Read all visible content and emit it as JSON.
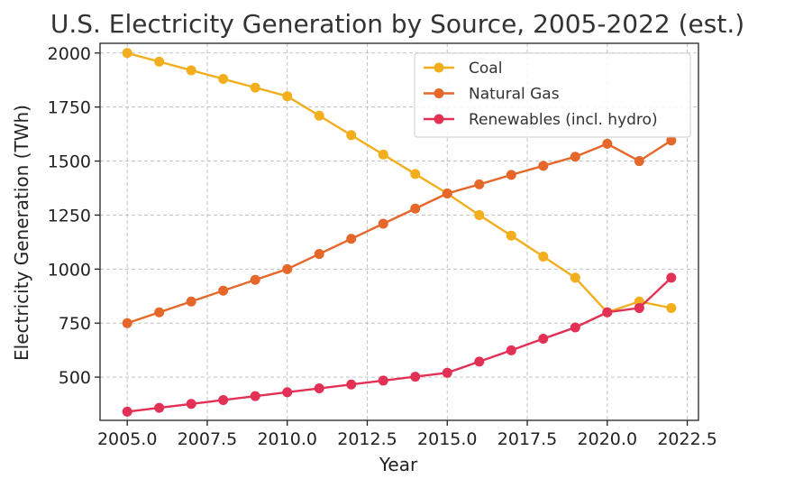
{
  "chart_data": {
    "type": "line",
    "title": "U.S. Electricity Generation by Source, 2005-2022 (est.)",
    "xlabel": "Year",
    "ylabel": "Electricity Generation (TWh)",
    "xlim": [
      2004.15,
      2022.85
    ],
    "ylim": [
      300,
      2045
    ],
    "x_ticks": [
      2005.0,
      2007.5,
      2010.0,
      2012.5,
      2015.0,
      2017.5,
      2020.0,
      2022.5
    ],
    "x_tick_labels": [
      "2005.0",
      "2007.5",
      "2010.0",
      "2012.5",
      "2015.0",
      "2017.5",
      "2020.0",
      "2022.5"
    ],
    "y_ticks": [
      500,
      750,
      1000,
      1250,
      1500,
      1750,
      2000
    ],
    "y_tick_labels": [
      "500",
      "750",
      "1000",
      "1250",
      "1500",
      "1750",
      "2000"
    ],
    "grid": true,
    "legend_position": "top-right",
    "x": [
      2005,
      2006,
      2007,
      2008,
      2009,
      2010,
      2011,
      2012,
      2013,
      2014,
      2015,
      2016,
      2017,
      2018,
      2019,
      2020,
      2021,
      2022
    ],
    "series": [
      {
        "name": "Coal",
        "color": "#F2AE1C",
        "values": [
          2000,
          1960,
          1920,
          1880,
          1840,
          1800,
          1710,
          1620,
          1530,
          1440,
          1350,
          1250,
          1155,
          1058,
          960,
          800,
          850,
          820
        ]
      },
      {
        "name": "Natural Gas",
        "color": "#E6672A",
        "values": [
          750,
          800,
          850,
          900,
          950,
          1000,
          1070,
          1140,
          1210,
          1280,
          1350,
          1392,
          1436,
          1478,
          1520,
          1580,
          1500,
          1595
        ]
      },
      {
        "name": "Renewables (incl. hydro)",
        "color": "#E33055",
        "values": [
          340,
          358,
          376,
          394,
          412,
          430,
          448,
          466,
          484,
          502,
          520,
          572,
          624,
          678,
          730,
          800,
          820,
          960
        ]
      }
    ]
  }
}
